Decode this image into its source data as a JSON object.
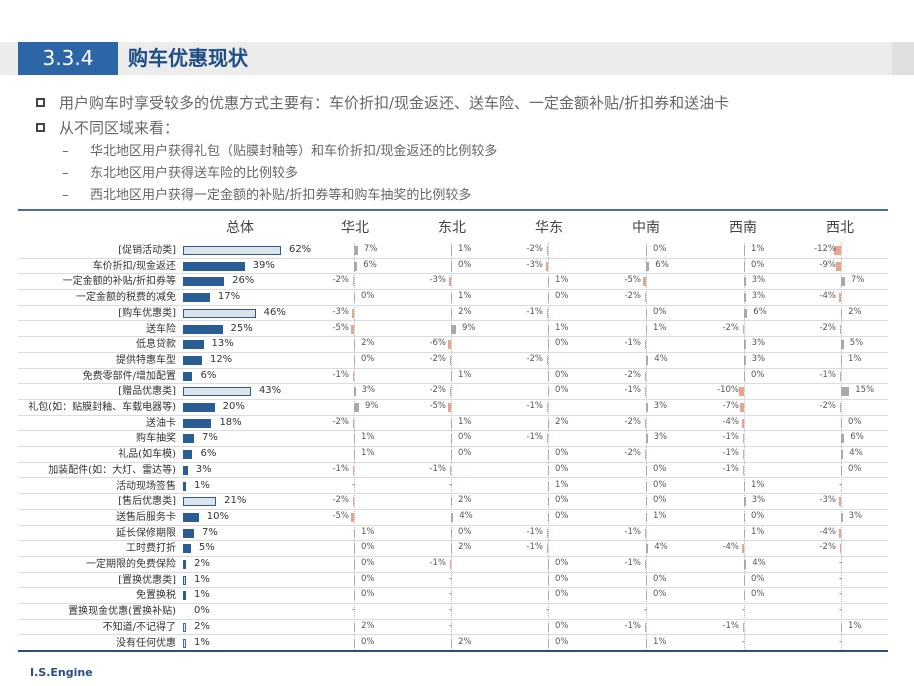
{
  "header": {
    "section_number": "3.3.4",
    "title": "购车优惠现状"
  },
  "bullets": [
    "用户购车时享受较多的优惠方式主要有：车价折扣/现金返还、送车险、一定金额补贴/折扣券和送油卡",
    "从不同区域来看："
  ],
  "sub_bullets": [
    "华北地区用户获得礼包（贴膜封釉等）和车价折扣/现金返还的比例较多",
    "东北地区用户获得送车险的比例较多",
    "西北地区用户获得一定金额的补贴/折扣券等和购车抽奖的比例较多"
  ],
  "footer": "I.S.Engine",
  "colors": {
    "brand": "#2d66a6",
    "bar": "#2a5d96",
    "positive": "#a9a9a9",
    "negative": "#e7a58b"
  },
  "chart_data": {
    "type": "bar",
    "title": "",
    "columns": [
      "总体",
      "华北",
      "东北",
      "华东",
      "中南",
      "西南",
      "西北"
    ],
    "note": "总体 = overall share (%); region columns = difference vs overall (percentage points); '-' = no value",
    "rows": [
      {
        "label": "[促销活动类]",
        "kind": "category",
        "overall": 62,
        "regions": [
          7,
          1,
          -2,
          0,
          1,
          -12
        ]
      },
      {
        "label": "车价折扣/现金返还",
        "kind": "item",
        "overall": 39,
        "regions": [
          6,
          0,
          -3,
          6,
          0,
          -9
        ]
      },
      {
        "label": "一定金额的补贴/折扣券等",
        "kind": "item",
        "overall": 26,
        "regions": [
          -2,
          -3,
          1,
          -5,
          3,
          7
        ]
      },
      {
        "label": "一定金额的税费的减免",
        "kind": "item",
        "overall": 17,
        "regions": [
          0,
          1,
          0,
          -2,
          3,
          -4
        ]
      },
      {
        "label": "[购车优惠类]",
        "kind": "category",
        "overall": 46,
        "regions": [
          -3,
          2,
          -1,
          0,
          6,
          2
        ]
      },
      {
        "label": "送车险",
        "kind": "item",
        "overall": 25,
        "regions": [
          -5,
          9,
          1,
          1,
          -2,
          -2
        ]
      },
      {
        "label": "低息贷款",
        "kind": "item",
        "overall": 13,
        "regions": [
          2,
          -6,
          0,
          -1,
          3,
          5
        ]
      },
      {
        "label": "提供特惠车型",
        "kind": "item",
        "overall": 12,
        "regions": [
          0,
          -2,
          -2,
          4,
          3,
          1
        ]
      },
      {
        "label": "免费零部件/增加配置",
        "kind": "item",
        "overall": 6,
        "regions": [
          -1,
          1,
          0,
          -2,
          0,
          -1
        ]
      },
      {
        "label": "[赠品优惠类]",
        "kind": "category",
        "overall": 43,
        "regions": [
          3,
          -2,
          0,
          -1,
          -10,
          15
        ]
      },
      {
        "label": "礼包(如：贴膜封釉、车载电器等)",
        "kind": "item",
        "overall": 20,
        "regions": [
          9,
          -5,
          -1,
          3,
          -7,
          -2
        ]
      },
      {
        "label": "送油卡",
        "kind": "item",
        "overall": 18,
        "regions": [
          -2,
          1,
          2,
          -2,
          -4,
          0
        ]
      },
      {
        "label": "购车抽奖",
        "kind": "item",
        "overall": 7,
        "regions": [
          1,
          0,
          -1,
          3,
          -1,
          6
        ]
      },
      {
        "label": "礼品(如车模)",
        "kind": "item",
        "overall": 6,
        "regions": [
          1,
          0,
          0,
          -2,
          -1,
          4
        ]
      },
      {
        "label": "加装配件(如：大灯、雷达等)",
        "kind": "item",
        "overall": 3,
        "regions": [
          -1,
          -1,
          0,
          0,
          -1,
          0
        ]
      },
      {
        "label": "活动现场签售",
        "kind": "item",
        "overall": 1,
        "regions": [
          null,
          null,
          1,
          0,
          1,
          null
        ]
      },
      {
        "label": "[售后优惠类]",
        "kind": "category",
        "overall": 21,
        "regions": [
          -2,
          2,
          0,
          0,
          3,
          -3
        ]
      },
      {
        "label": "送售后服务卡",
        "kind": "item",
        "overall": 10,
        "regions": [
          -5,
          4,
          0,
          1,
          0,
          3
        ]
      },
      {
        "label": "延长保修期限",
        "kind": "item",
        "overall": 7,
        "regions": [
          1,
          0,
          -1,
          -1,
          1,
          -4
        ]
      },
      {
        "label": "工时费打折",
        "kind": "item",
        "overall": 5,
        "regions": [
          0,
          2,
          -1,
          4,
          -4,
          -2
        ]
      },
      {
        "label": "一定期限的免费保险",
        "kind": "item",
        "overall": 2,
        "regions": [
          0,
          -1,
          0,
          -1,
          4,
          null
        ]
      },
      {
        "label": "[置换优惠类]",
        "kind": "category",
        "overall": 1,
        "regions": [
          0,
          null,
          0,
          0,
          0,
          null
        ]
      },
      {
        "label": "免置换税",
        "kind": "item",
        "overall": 1,
        "regions": [
          0,
          null,
          0,
          0,
          0,
          null
        ]
      },
      {
        "label": "置换现金优惠(置换补贴)",
        "kind": "item",
        "overall": 0,
        "regions": [
          null,
          null,
          null,
          null,
          null,
          null
        ]
      },
      {
        "label": "不知道/不记得了",
        "kind": "other",
        "overall": 2,
        "regions": [
          2,
          null,
          0,
          -1,
          -1,
          1
        ]
      },
      {
        "label": "没有任何优惠",
        "kind": "other",
        "overall": 1,
        "regions": [
          0,
          2,
          0,
          1,
          null,
          null
        ]
      }
    ]
  }
}
